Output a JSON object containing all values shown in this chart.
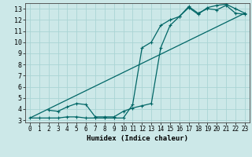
{
  "xlabel": "Humidex (Indice chaleur)",
  "bg_color": "#cce8e8",
  "line_color": "#006666",
  "grid_color": "#aad4d4",
  "xlim": [
    -0.5,
    23.5
  ],
  "ylim": [
    2.8,
    13.5
  ],
  "xticks": [
    0,
    1,
    2,
    3,
    4,
    5,
    6,
    7,
    8,
    9,
    10,
    11,
    12,
    13,
    14,
    15,
    16,
    17,
    18,
    19,
    20,
    21,
    22,
    23
  ],
  "yticks": [
    3,
    4,
    5,
    6,
    7,
    8,
    9,
    10,
    11,
    12,
    13
  ],
  "line1_x": [
    0,
    1,
    2,
    3,
    4,
    5,
    6,
    7,
    8,
    9,
    10,
    11,
    12,
    13,
    14,
    15,
    16,
    17,
    18,
    19,
    20,
    21,
    22,
    23
  ],
  "line1_y": [
    3.2,
    3.2,
    3.2,
    3.2,
    3.3,
    3.3,
    3.2,
    3.2,
    3.2,
    3.2,
    3.2,
    4.4,
    9.5,
    10.0,
    11.5,
    12.0,
    12.3,
    13.1,
    12.5,
    13.1,
    13.3,
    13.4,
    13.0,
    12.6
  ],
  "line2_x": [
    2,
    3,
    4,
    5,
    6,
    7,
    8,
    9,
    10,
    11,
    12,
    13,
    14,
    15,
    16,
    17,
    18,
    19,
    20,
    21,
    22,
    23
  ],
  "line2_y": [
    3.9,
    3.8,
    4.2,
    4.5,
    4.4,
    3.3,
    3.3,
    3.3,
    3.8,
    4.1,
    4.3,
    4.5,
    9.5,
    11.5,
    12.3,
    13.2,
    12.6,
    13.0,
    12.9,
    13.3,
    12.6,
    12.5
  ],
  "line3_x": [
    0,
    23
  ],
  "line3_y": [
    3.2,
    12.6
  ],
  "xlabel_fontsize": 6.5,
  "tick_fontsize": 5.5
}
